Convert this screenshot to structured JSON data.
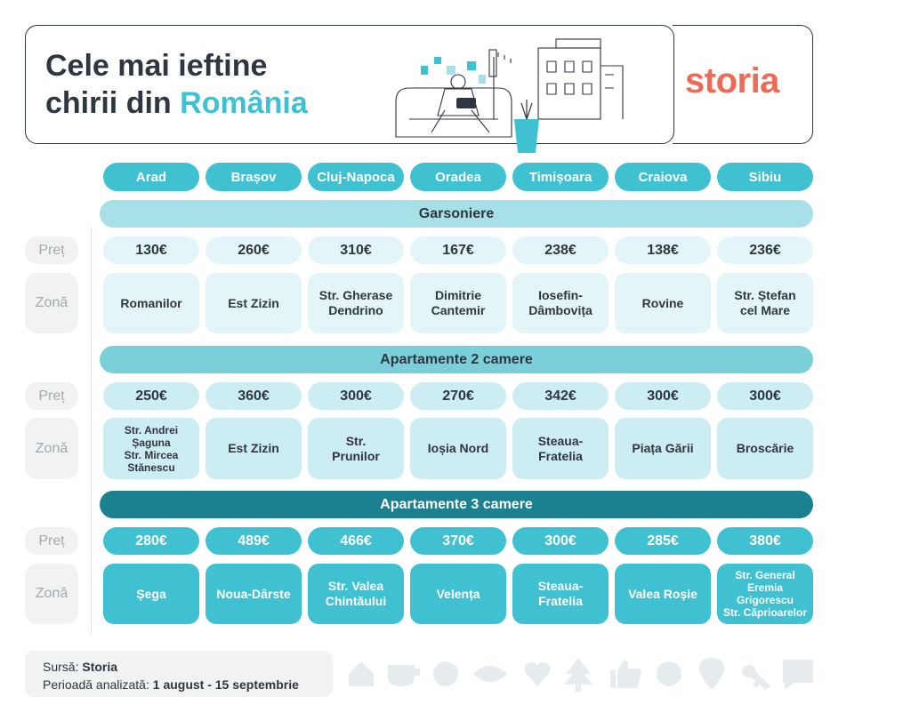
{
  "title": {
    "line1": "Cele mai ieftine",
    "line2_prefix": "chirii din",
    "line2_accent": "România"
  },
  "brand": {
    "logo": "storia",
    "color": "#ef6a56"
  },
  "cities": [
    "Arad",
    "Brașov",
    "Cluj-Napoca",
    "Oradea",
    "Timișoara",
    "Craiova",
    "Sibiu"
  ],
  "row_labels": {
    "price": "Preț",
    "zone": "Zonă"
  },
  "sections": [
    {
      "title": "Garsoniere",
      "bar_color": "#a7e0e7",
      "cell_color": "#e3f5f7",
      "text_color": "#2f3640",
      "prices": [
        "130€",
        "260€",
        "310€",
        "167€",
        "238€",
        "138€",
        "236€"
      ],
      "zones": [
        [
          "Romanilor"
        ],
        [
          "Est Zizin"
        ],
        [
          "Str. Gherase",
          "Dendrino"
        ],
        [
          "Dimitrie",
          "Cantemir"
        ],
        [
          "Iosefin-",
          "Dâmbovița"
        ],
        [
          "Rovine"
        ],
        [
          "Str. Ștefan",
          "cel Mare"
        ]
      ]
    },
    {
      "title": "Apartamente 2 camere",
      "bar_color": "#7acfd8",
      "cell_color": "#ccedf1",
      "text_color": "#2f3640",
      "prices": [
        "250€",
        "360€",
        "300€",
        "270€",
        "342€",
        "300€",
        "300€"
      ],
      "zones": [
        [
          "Str. Andrei",
          "Șaguna",
          "Str. Mircea",
          "Stănescu"
        ],
        [
          "Est Zizin"
        ],
        [
          "Str.",
          "Prunilor"
        ],
        [
          "Ioșia Nord"
        ],
        [
          "Steaua-",
          "Fratelia"
        ],
        [
          "Piața Gării"
        ],
        [
          "Broscărie"
        ]
      ]
    },
    {
      "title": "Apartamente 3 camere",
      "bar_color": "#1c808f",
      "cell_color": "#40c1d2",
      "text_color": "#ffffff",
      "prices": [
        "280€",
        "489€",
        "466€",
        "370€",
        "300€",
        "285€",
        "380€"
      ],
      "zones": [
        [
          "Șega"
        ],
        [
          "Noua-Dârste"
        ],
        [
          "Str. Valea",
          "Chintăului"
        ],
        [
          "Velența"
        ],
        [
          "Steaua-",
          "Fratelia"
        ],
        [
          "Valea Roșie"
        ],
        [
          "Str. General",
          "Eremia Grigorescu",
          "Str. Căprioarelor"
        ]
      ]
    }
  ],
  "footer": {
    "source_label": "Sursă:",
    "source_value": "Storia",
    "period_label": "Perioadă analizată:",
    "period_value": "1 august - 15 septembrie"
  },
  "footer_icons": [
    "house-icon",
    "cup-icon",
    "smiley-icon",
    "eye-icon",
    "heart-icon",
    "tree-icon",
    "thumbs-up-icon",
    "flower-icon",
    "location-pin-icon",
    "key-icon",
    "chat-bubble-icon"
  ],
  "colors": {
    "accent": "#40c1d2",
    "dark_teal": "#1c808f",
    "text": "#2f3640",
    "brand": "#ef6a56"
  }
}
